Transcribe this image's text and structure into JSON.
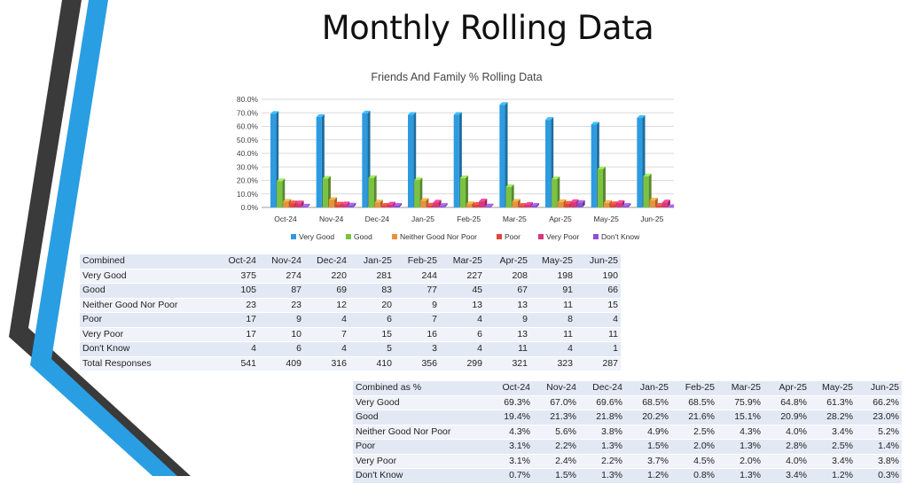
{
  "slide": {
    "title": "Monthly Rolling Data"
  },
  "chart_data": {
    "type": "bar",
    "title": "Friends And Family % Rolling Data",
    "categories": [
      "Oct-24",
      "Nov-24",
      "Dec-24",
      "Jan-25",
      "Feb-25",
      "Mar-25",
      "Apr-25",
      "May-25",
      "Jun-25"
    ],
    "y_ticks": [
      "0.0%",
      "10.0%",
      "20.0%",
      "30.0%",
      "40.0%",
      "50.0%",
      "60.0%",
      "70.0%",
      "80.0%"
    ],
    "ylim": [
      0,
      80
    ],
    "grid": true,
    "legend_position": "bottom",
    "series": [
      {
        "name": "Very Good",
        "color": "#2e9be0",
        "values": [
          69.3,
          67.0,
          69.6,
          68.5,
          68.5,
          75.9,
          64.8,
          61.3,
          66.2
        ]
      },
      {
        "name": "Good",
        "color": "#7cc242",
        "values": [
          19.4,
          21.3,
          21.8,
          20.2,
          21.6,
          15.1,
          20.9,
          28.2,
          23.0
        ]
      },
      {
        "name": "Neither Good Nor Poor",
        "color": "#e8923a",
        "values": [
          4.3,
          5.6,
          3.8,
          4.9,
          2.5,
          4.3,
          4.0,
          3.4,
          5.2
        ]
      },
      {
        "name": "Poor",
        "color": "#e0463a",
        "values": [
          3.1,
          2.2,
          1.3,
          1.5,
          2.0,
          1.3,
          2.8,
          2.5,
          1.4
        ]
      },
      {
        "name": "Very Poor",
        "color": "#d7387e",
        "values": [
          3.1,
          2.4,
          2.2,
          3.7,
          4.5,
          2.0,
          4.0,
          3.4,
          3.8
        ]
      },
      {
        "name": "Don't Know",
        "color": "#8e4fd0",
        "values": [
          0.7,
          1.5,
          1.3,
          1.2,
          0.8,
          1.3,
          3.4,
          1.2,
          0.3
        ]
      }
    ]
  },
  "table_counts": {
    "header": [
      "Combined",
      "Oct-24",
      "Nov-24",
      "Dec-24",
      "Jan-25",
      "Feb-25",
      "Mar-25",
      "Apr-25",
      "May-25",
      "Jun-25"
    ],
    "rows": [
      [
        "Very Good",
        "375",
        "274",
        "220",
        "281",
        "244",
        "227",
        "208",
        "198",
        "190"
      ],
      [
        "Good",
        "105",
        "87",
        "69",
        "83",
        "77",
        "45",
        "67",
        "91",
        "66"
      ],
      [
        "Neither Good Nor Poor",
        "23",
        "23",
        "12",
        "20",
        "9",
        "13",
        "13",
        "11",
        "15"
      ],
      [
        "Poor",
        "17",
        "9",
        "4",
        "6",
        "7",
        "4",
        "9",
        "8",
        "4"
      ],
      [
        "Very Poor",
        "17",
        "10",
        "7",
        "15",
        "16",
        "6",
        "13",
        "11",
        "11"
      ],
      [
        "Don't Know",
        "4",
        "6",
        "4",
        "5",
        "3",
        "4",
        "11",
        "4",
        "1"
      ],
      [
        "Total Responses",
        "541",
        "409",
        "316",
        "410",
        "356",
        "299",
        "321",
        "323",
        "287"
      ]
    ]
  },
  "table_percent": {
    "header": [
      "Combined as %",
      "Oct-24",
      "Nov-24",
      "Dec-24",
      "Jan-25",
      "Feb-25",
      "Mar-25",
      "Apr-25",
      "May-25",
      "Jun-25"
    ],
    "rows": [
      [
        "Very Good",
        "69.3%",
        "67.0%",
        "69.6%",
        "68.5%",
        "68.5%",
        "75.9%",
        "64.8%",
        "61.3%",
        "66.2%"
      ],
      [
        "Good",
        "19.4%",
        "21.3%",
        "21.8%",
        "20.2%",
        "21.6%",
        "15.1%",
        "20.9%",
        "28.2%",
        "23.0%"
      ],
      [
        "Neither Good Nor Poor",
        "4.3%",
        "5.6%",
        "3.8%",
        "4.9%",
        "2.5%",
        "4.3%",
        "4.0%",
        "3.4%",
        "5.2%"
      ],
      [
        "Poor",
        "3.1%",
        "2.2%",
        "1.3%",
        "1.5%",
        "2.0%",
        "1.3%",
        "2.8%",
        "2.5%",
        "1.4%"
      ],
      [
        "Very Poor",
        "3.1%",
        "2.4%",
        "2.2%",
        "3.7%",
        "4.5%",
        "2.0%",
        "4.0%",
        "3.4%",
        "3.8%"
      ],
      [
        "Don't Know",
        "0.7%",
        "1.5%",
        "1.3%",
        "1.2%",
        "0.8%",
        "1.3%",
        "3.4%",
        "1.2%",
        "0.3%"
      ]
    ]
  }
}
